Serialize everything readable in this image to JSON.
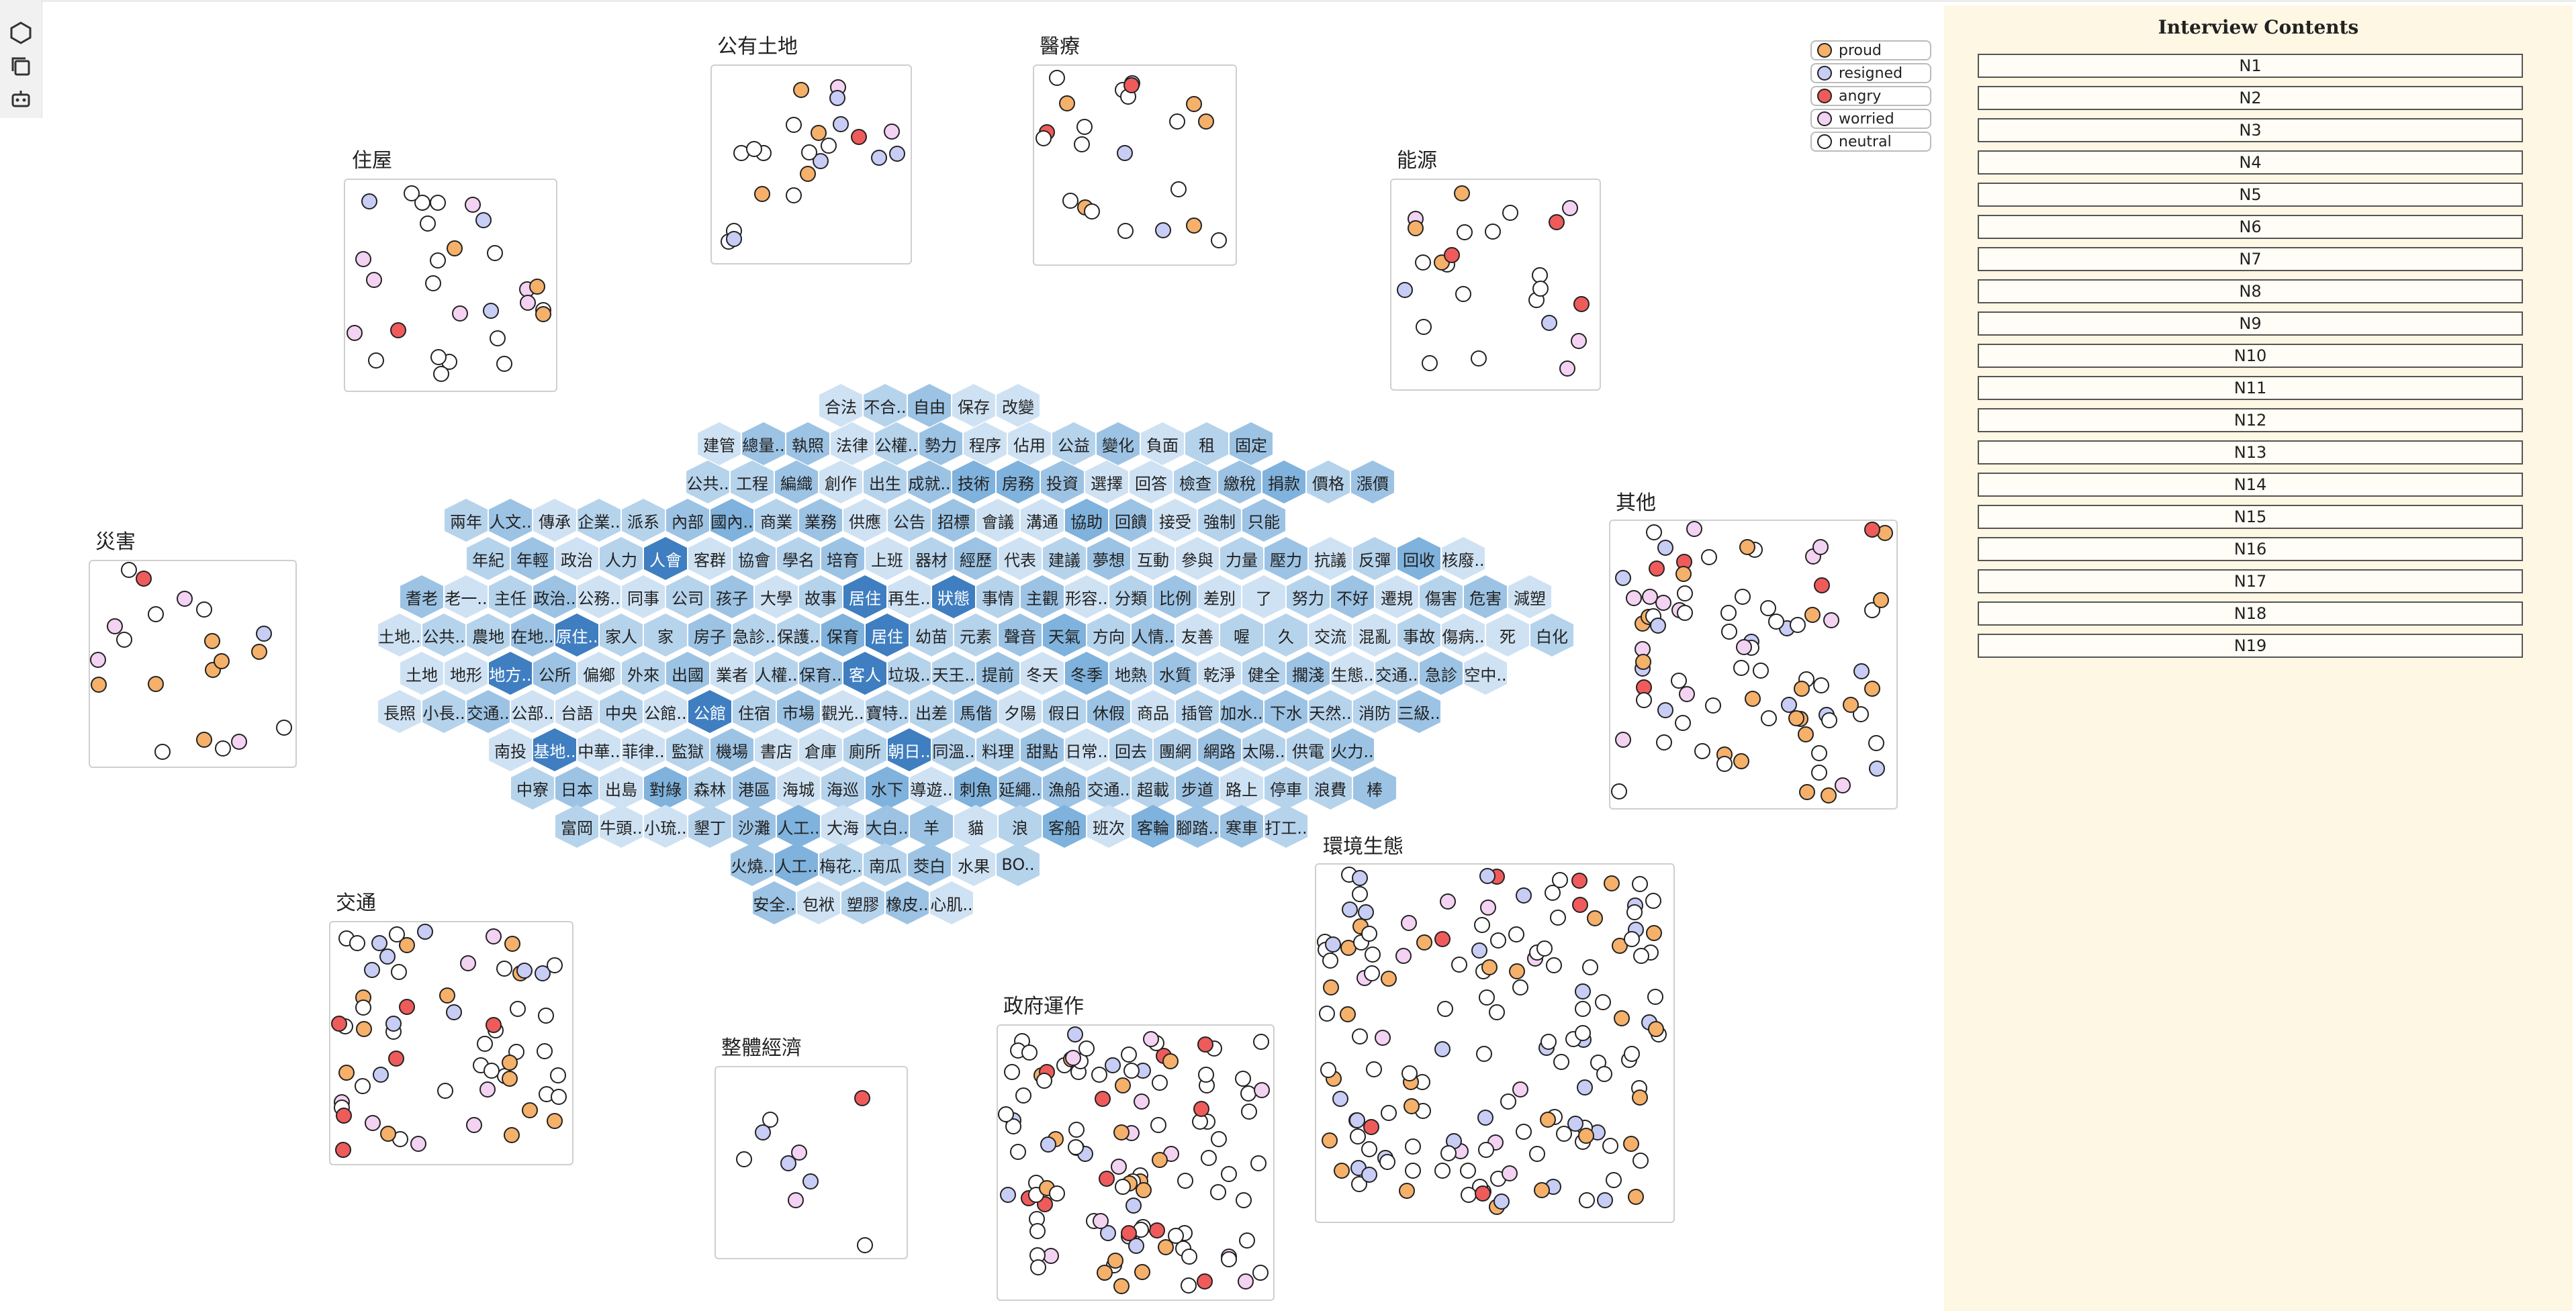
{
  "legend": [
    {
      "label": "proud",
      "color": "#f5b06a"
    },
    {
      "label": "resigned",
      "color": "#c8cdf5"
    },
    {
      "label": "angry",
      "color": "#ef5b5b"
    },
    {
      "label": "worried",
      "color": "#f3d2f2"
    },
    {
      "label": "neutral",
      "color": "#ffffff"
    }
  ],
  "panel": {
    "title": "Interview Contents",
    "items": [
      "N1",
      "N2",
      "N3",
      "N4",
      "N5",
      "N6",
      "N7",
      "N8",
      "N9",
      "N10",
      "N11",
      "N12",
      "N13",
      "N14",
      "N15",
      "N16",
      "N17",
      "N18",
      "N19"
    ]
  },
  "toolbar": {
    "icons": [
      "hexagon-icon",
      "copy-icon",
      "robot-icon"
    ]
  },
  "clusters": [
    {
      "name": "公有土地"
    },
    {
      "name": "醫療"
    },
    {
      "name": "住屋"
    },
    {
      "name": "能源"
    },
    {
      "name": "災害"
    },
    {
      "name": "其他"
    },
    {
      "name": "環境生態"
    },
    {
      "name": "交通"
    },
    {
      "name": "整體經濟"
    },
    {
      "name": "政府運作"
    }
  ],
  "hexagons": {
    "rows": [
      [
        "合法",
        "不合..",
        "自由",
        "保存",
        "改變"
      ],
      [
        "建管",
        "總量..",
        "執照",
        "法律",
        "公權..",
        "勢力",
        "程序",
        "佔用",
        "公益",
        "變化",
        "負面",
        "租",
        "固定"
      ],
      [
        "公共..",
        "工程",
        "編織",
        "創作",
        "出生",
        "成就..",
        "技術",
        "房務",
        "投資",
        "選擇",
        "回答",
        "檢查",
        "繳稅",
        "捐款",
        "價格",
        "漲價"
      ],
      [
        "兩年",
        "人文..",
        "傳承",
        "企業..",
        "派系",
        "內部",
        "國內..",
        "商業",
        "業務",
        "供應",
        "公告",
        "招標",
        "會議",
        "溝通",
        "協助",
        "回饋",
        "接受",
        "強制",
        "只能"
      ],
      [
        "年紀",
        "年輕",
        "政治",
        "人力",
        "人會",
        "客群",
        "協會",
        "學名",
        "培育",
        "上班",
        "器材",
        "經歷",
        "代表",
        "建議",
        "夢想",
        "互動",
        "參與",
        "力量",
        "壓力",
        "抗議",
        "反彈",
        "回收",
        "核廢.."
      ],
      [
        "耆老",
        "老一..",
        "主任",
        "政治..",
        "公務..",
        "同事",
        "公司",
        "孩子",
        "大學",
        "故事",
        "居住",
        "再生..",
        "狀態",
        "事情",
        "主觀",
        "形容..",
        "分類",
        "比例",
        "差別",
        "了",
        "努力",
        "不好",
        "遷規",
        "傷害",
        "危害",
        "減塑"
      ],
      [
        "土地..",
        "公共..",
        "農地",
        "在地..",
        "原住..",
        "家人",
        "家",
        "房子",
        "急診..",
        "保護..",
        "保育",
        "居住",
        "幼苗",
        "元素",
        "聲音",
        "天氣",
        "方向",
        "人情..",
        "友善",
        "喔",
        "久",
        "交流",
        "混亂",
        "事故",
        "傷病..",
        "死",
        "白化"
      ],
      [
        "土地",
        "地形",
        "地方..",
        "公所",
        "偏鄉",
        "外來",
        "出國",
        "業者",
        "人權..",
        "保育..",
        "客人",
        "垃圾..",
        "天王..",
        "提前",
        "冬天",
        "冬季",
        "地熱",
        "水質",
        "乾淨",
        "健全",
        "擱淺",
        "生態..",
        "交通..",
        "急診",
        "空中.."
      ],
      [
        "長照",
        "小長..",
        "交通..",
        "公部..",
        "台語",
        "中央",
        "公館..",
        "公館",
        "住宿",
        "市場",
        "觀光..",
        "寶特..",
        "出差",
        "馬偕",
        "夕陽",
        "假日",
        "休假",
        "商品",
        "插管",
        "加水..",
        "下水",
        "天然..",
        "消防",
        "三級.."
      ],
      [
        "南投",
        "基地..",
        "中華..",
        "菲律..",
        "監獄",
        "機場",
        "書店",
        "倉庫",
        "廁所",
        "朝日..",
        "同溫..",
        "料理",
        "甜點",
        "日常..",
        "回去",
        "團網",
        "網路",
        "太陽..",
        "供電",
        "火力.."
      ],
      [
        "中寮",
        "日本",
        "出島",
        "對綠",
        "森林",
        "港區",
        "海城",
        "海巡",
        "水下",
        "導遊..",
        "刺魚",
        "延繩..",
        "漁船",
        "交通..",
        "超載",
        "步道",
        "路上",
        "停車",
        "浪費",
        "棒"
      ],
      [
        "富岡",
        "牛頭..",
        "小琉..",
        "墾丁",
        "沙灘",
        "人工..",
        "大海",
        "大白..",
        "羊",
        "貓",
        "浪",
        "客船",
        "班次",
        "客輪",
        "腳踏..",
        "寒車",
        "打工.."
      ],
      [
        "火燒..",
        "人工..",
        "梅花..",
        "南瓜",
        "茭白",
        "水果",
        "BO.."
      ],
      [
        "安全..",
        "包袱",
        "塑膠",
        "橡皮..",
        "心肌.."
      ]
    ]
  }
}
